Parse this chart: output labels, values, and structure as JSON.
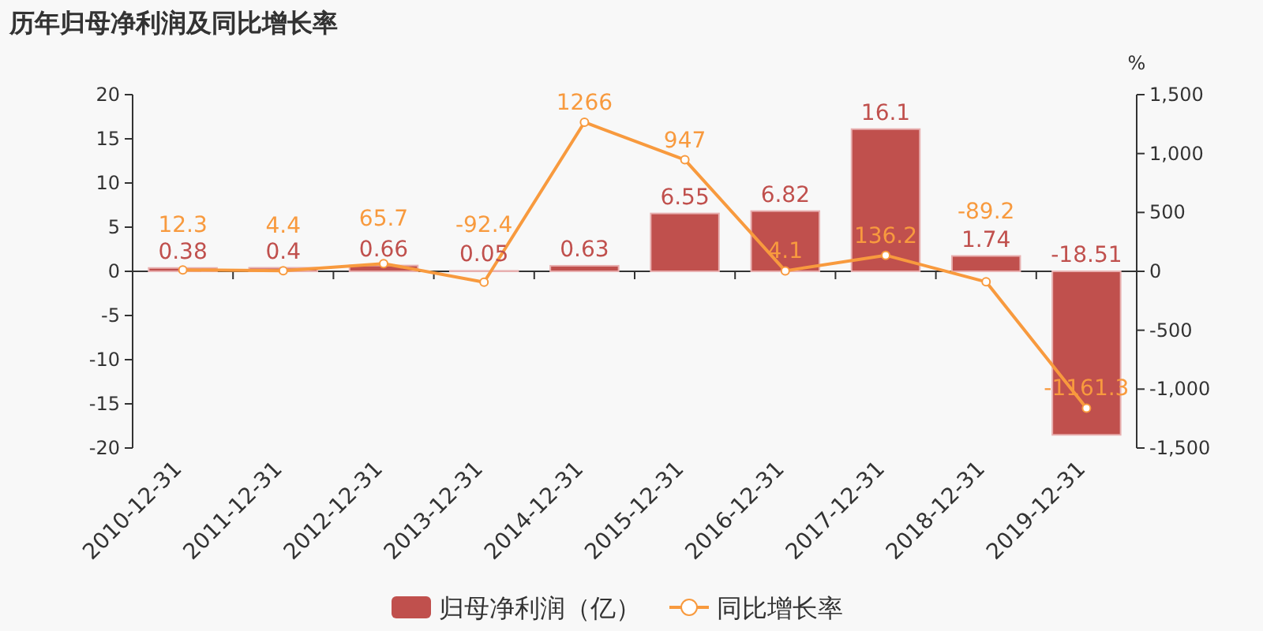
{
  "chart_data": {
    "type": "bar",
    "title": "历年归母净利润及同比增长率",
    "y2label": "%",
    "categories": [
      "2010-12-31",
      "2011-12-31",
      "2012-12-31",
      "2013-12-31",
      "2014-12-31",
      "2015-12-31",
      "2016-12-31",
      "2017-12-31",
      "2018-12-31",
      "2019-12-31"
    ],
    "series": [
      {
        "name": "归母净利润（亿）",
        "color": "#c0504d",
        "values": [
          0.38,
          0.4,
          0.66,
          0.05,
          0.63,
          6.55,
          6.82,
          16.1,
          1.74,
          -18.51
        ]
      },
      {
        "name": "同比增长率",
        "type": "line",
        "axis": "y2",
        "color": "#f89a3e",
        "marker": "circle",
        "values": [
          12.3,
          4.4,
          65.7,
          -92.4,
          1266,
          947,
          4.1,
          136.2,
          -89.2,
          -1161.3
        ]
      }
    ],
    "ylim": [
      -20,
      20
    ],
    "yticks": [
      -20,
      -15,
      -10,
      -5,
      0,
      5,
      10,
      15,
      20
    ],
    "y2lim": [
      -1500,
      1500
    ],
    "y2ticks": [
      {
        "value": -1500,
        "label": "-1,500"
      },
      {
        "value": -1000,
        "label": "-1,000"
      },
      -500,
      0,
      500,
      {
        "value": 1000,
        "label": "1,000"
      },
      {
        "value": 1500,
        "label": "1,500"
      }
    ],
    "data_labels": true,
    "legend": "bottom"
  }
}
